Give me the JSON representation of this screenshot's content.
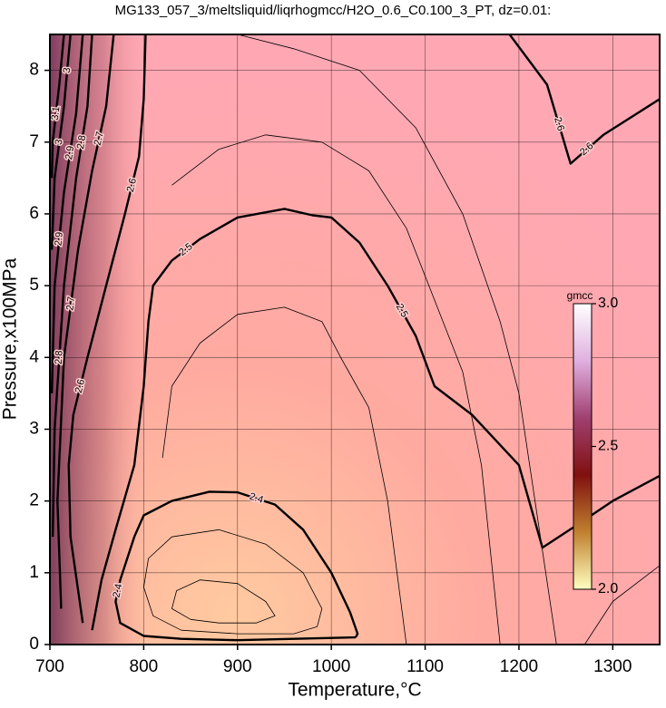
{
  "chart_data": {
    "type": "contour",
    "title": "MG133_057_3/meltsliquid/liqrhogmcc/H2O_0.6_C0.100_3_PT, dz=0.01:",
    "x_label": "Temperature,°C",
    "y_label": "Pressure,x100MPa",
    "xlim": [
      700,
      1350
    ],
    "ylim": [
      0,
      8.5
    ],
    "xticks": [
      700,
      800,
      900,
      1000,
      1100,
      1200,
      1300
    ],
    "yticks": [
      0,
      1,
      2,
      3,
      4,
      5,
      6,
      7,
      8
    ],
    "grid": true,
    "line_color": "#000000",
    "contours": [
      {
        "bold": true,
        "labels": [
          "2.4",
          "2.4"
        ],
        "x": [
          1026,
          960,
          900,
          840,
          800,
          775,
          770,
          775,
          790,
          800,
          830,
          870,
          900,
          940,
          970,
          1000,
          1020,
          1028,
          1026
        ],
        "y": [
          0.1,
          0.08,
          0.06,
          0.08,
          0.12,
          0.3,
          0.6,
          0.9,
          1.5,
          1.8,
          2.0,
          2.13,
          2.12,
          1.95,
          1.6,
          1.0,
          0.45,
          0.15,
          0.1
        ]
      },
      {
        "bold": true,
        "labels": [
          "2.5",
          "2.5"
        ],
        "x": [
          745,
          755,
          770,
          790,
          800,
          805,
          810,
          830,
          860,
          900,
          950,
          980,
          1000,
          1030,
          1060,
          1090,
          1110,
          1150,
          1200,
          1225,
          1260,
          1300,
          1350
        ],
        "y": [
          0.2,
          0.9,
          1.6,
          2.5,
          3.6,
          4.5,
          5.0,
          5.35,
          5.65,
          5.95,
          6.07,
          5.98,
          5.95,
          5.6,
          5.0,
          4.3,
          3.6,
          3.2,
          2.5,
          1.35,
          1.65,
          2.0,
          2.35
        ]
      },
      {
        "bold": true,
        "labels": [
          "2.6",
          "2.6"
        ],
        "x": [
          735,
          722,
          720,
          725,
          740,
          760,
          780,
          795,
          800,
          802
        ],
        "y": [
          0.3,
          1.5,
          2.5,
          3.2,
          4.0,
          5.0,
          6.0,
          6.8,
          7.6,
          8.5
        ]
      },
      {
        "bold": true,
        "labels": [
          "2.6",
          "2.6"
        ],
        "x": [
          1190,
          1230,
          1255,
          1290,
          1350
        ],
        "y": [
          8.5,
          7.8,
          6.7,
          7.1,
          7.6
        ]
      },
      {
        "bold": true,
        "labels": [
          "2.7",
          "2.7"
        ],
        "x": [
          712,
          708,
          715,
          730,
          745,
          760,
          768
        ],
        "y": [
          0.5,
          2.0,
          4.0,
          5.5,
          6.6,
          7.5,
          8.5
        ]
      },
      {
        "bold": true,
        "labels": [
          "2.8",
          "2.8"
        ],
        "x": [
          703,
          705,
          715,
          728,
          740,
          745
        ],
        "y": [
          1.5,
          3.0,
          5.0,
          6.5,
          7.5,
          8.5
        ]
      },
      {
        "bold": true,
        "labels": [
          "2.9",
          "2.9"
        ],
        "x": [
          702,
          705,
          715,
          728,
          735
        ],
        "y": [
          3.5,
          5.0,
          6.3,
          7.4,
          8.5
        ]
      },
      {
        "bold": true,
        "labels": [
          "3",
          "3"
        ],
        "x": [
          702,
          705,
          715,
          722
        ],
        "y": [
          5.5,
          6.5,
          7.5,
          8.5
        ]
      },
      {
        "bold": true,
        "labels": [
          "3.1"
        ],
        "x": [
          702,
          703,
          710,
          715
        ],
        "y": [
          6.5,
          7.0,
          7.8,
          8.5
        ]
      },
      {
        "bold": false,
        "labels": [],
        "x": [
          880,
          850,
          830,
          835,
          860,
          900,
          930,
          940,
          920,
          880
        ],
        "y": [
          0.3,
          0.35,
          0.5,
          0.75,
          0.9,
          0.85,
          0.6,
          0.4,
          0.3,
          0.3
        ]
      },
      {
        "bold": false,
        "labels": [],
        "x": [
          960,
          900,
          840,
          810,
          800,
          805,
          830,
          880,
          930,
          970,
          990,
          985,
          960
        ],
        "y": [
          0.15,
          0.15,
          0.2,
          0.4,
          0.8,
          1.2,
          1.5,
          1.6,
          1.4,
          1.0,
          0.5,
          0.25,
          0.15
        ]
      },
      {
        "bold": false,
        "labels": [],
        "x": [
          820,
          830,
          860,
          900,
          950,
          990,
          1010,
          1040,
          1060,
          1080
        ],
        "y": [
          2.6,
          3.6,
          4.2,
          4.6,
          4.7,
          4.5,
          4.0,
          3.3,
          2.0,
          0.0
        ]
      },
      {
        "bold": false,
        "labels": [],
        "x": [
          830,
          880,
          930,
          990,
          1040,
          1080,
          1110,
          1140,
          1160,
          1180
        ],
        "y": [
          6.4,
          6.9,
          7.1,
          7.0,
          6.6,
          5.8,
          4.8,
          3.8,
          2.5,
          0.0
        ]
      },
      {
        "bold": false,
        "labels": [],
        "x": [
          900,
          960,
          1030,
          1090,
          1140,
          1180,
          1200,
          1240
        ],
        "y": [
          8.5,
          8.3,
          8.0,
          7.2,
          6.0,
          4.5,
          3.5,
          0.0
        ]
      },
      {
        "bold": false,
        "labels": [],
        "x": [
          1270,
          1300,
          1350
        ],
        "y": [
          0.0,
          0.6,
          1.1
        ]
      }
    ],
    "colorbar": {
      "label": "gmcc",
      "range": [
        2.0,
        3.0
      ],
      "ticks": [
        {
          "value": 3.0,
          "label": "3.0"
        },
        {
          "value": 2.5,
          "label": "2.5"
        },
        {
          "value": 2.0,
          "label": "2.0"
        }
      ],
      "colors": [
        "#ffffc0",
        "#c08030",
        "#801010",
        "#a04070",
        "#e0b0e0",
        "#ffffff"
      ]
    }
  }
}
